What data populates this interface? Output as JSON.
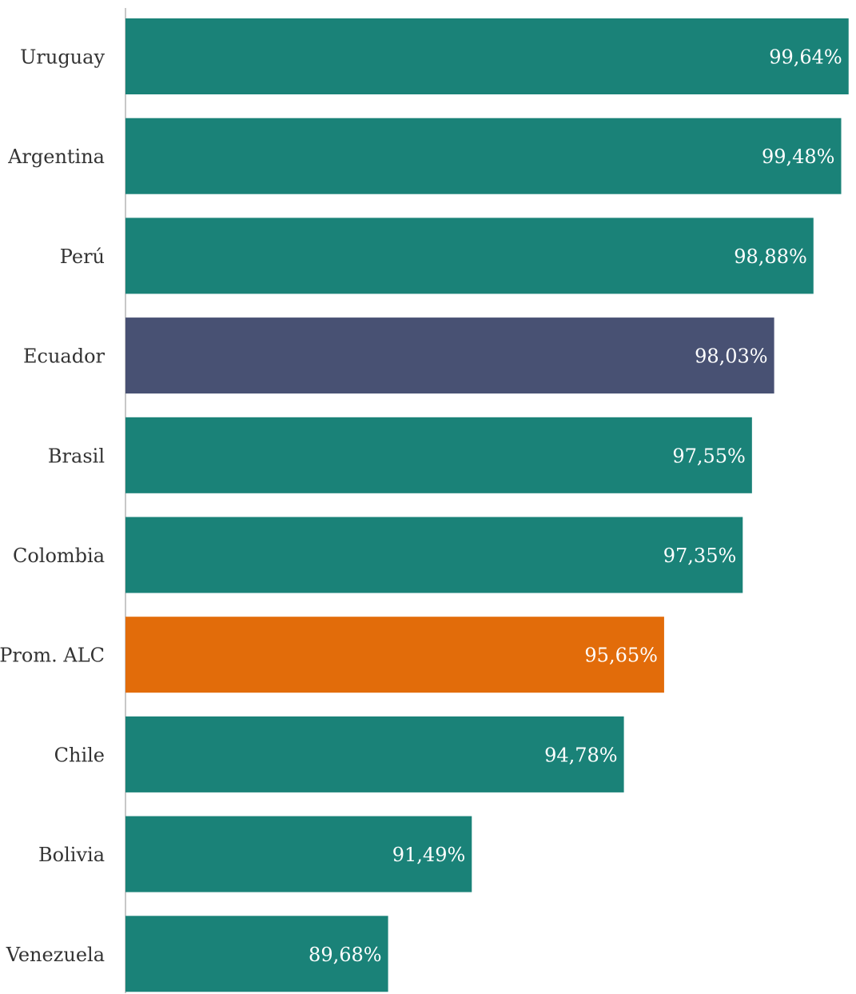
{
  "chart_data": {
    "type": "bar",
    "orientation": "horizontal",
    "categories": [
      "Uruguay",
      "Argentina",
      "Perú",
      "Ecuador",
      "Brasil",
      "Colombia",
      "Prom. ALC",
      "Chile",
      "Bolivia",
      "Venezuela"
    ],
    "values": [
      99.64,
      99.48,
      98.88,
      98.03,
      97.55,
      97.35,
      95.65,
      94.78,
      91.49,
      89.68
    ],
    "value_labels": [
      "99,64%",
      "99,48%",
      "98,88%",
      "98,03%",
      "97,55%",
      "97,35%",
      "95,65%",
      "94,78%",
      "91,49%",
      "89,68%"
    ],
    "xlim": [
      84,
      99.8
    ],
    "grid": false,
    "legend": "none",
    "colors": {
      "default": "#1a8278",
      "Ecuador": "#485173",
      "Prom. ALC": "#e26c0a"
    }
  }
}
